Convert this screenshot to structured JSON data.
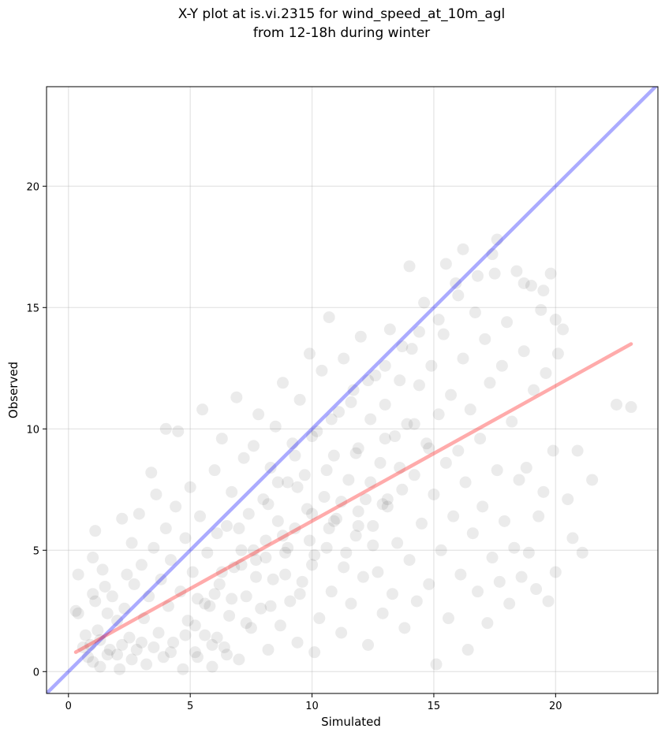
{
  "figure": {
    "title_line1": "X-Y plot at is.vi.2315 for wind_speed_at_10m_agl",
    "title_line2": "from 12-18h during winter"
  },
  "chart_data": {
    "type": "scatter",
    "title": "X-Y plot at is.vi.2315 for wind_speed_at_10m_agl\nfrom 12-18h during winter",
    "xlabel": "Simulated",
    "ylabel": "Observed",
    "xlim": [
      -0.9,
      24.2
    ],
    "ylim": [
      -0.9,
      24.1
    ],
    "xticks": [
      0,
      5,
      10,
      15,
      20
    ],
    "yticks": [
      0,
      5,
      10,
      15,
      20
    ],
    "grid": true,
    "colors": {
      "points": "#000000",
      "one_to_one": "#0000ff",
      "regression": "#ff0000"
    },
    "points_alpha": 0.08,
    "series": [
      {
        "kind": "points",
        "points": [
          [
            0.3,
            2.5
          ],
          [
            0.4,
            4.0
          ],
          [
            0.4,
            2.4
          ],
          [
            0.6,
            1.0
          ],
          [
            0.7,
            1.5
          ],
          [
            0.8,
            0.6
          ],
          [
            0.9,
            1.1
          ],
          [
            1.0,
            4.7
          ],
          [
            1.0,
            3.2
          ],
          [
            1.0,
            0.4
          ],
          [
            1.1,
            5.8
          ],
          [
            1.1,
            2.9
          ],
          [
            1.2,
            1.7
          ],
          [
            1.3,
            1.3
          ],
          [
            1.3,
            0.2
          ],
          [
            1.4,
            4.2
          ],
          [
            1.5,
            3.5
          ],
          [
            1.6,
            2.4
          ],
          [
            1.7,
            0.9
          ],
          [
            1.8,
            3.1
          ],
          [
            2.0,
            2.1
          ],
          [
            2.0,
            0.7
          ],
          [
            2.1,
            0.1
          ],
          [
            2.2,
            6.3
          ],
          [
            2.3,
            2.6
          ],
          [
            2.4,
            4.0
          ],
          [
            2.5,
            1.4
          ],
          [
            2.6,
            5.3
          ],
          [
            2.7,
            3.6
          ],
          [
            2.8,
            0.9
          ],
          [
            2.9,
            6.5
          ],
          [
            3.0,
            4.4
          ],
          [
            3.1,
            2.2
          ],
          [
            3.2,
            0.3
          ],
          [
            3.3,
            3.1
          ],
          [
            3.4,
            8.2
          ],
          [
            3.5,
            5.1
          ],
          [
            3.6,
            7.3
          ],
          [
            3.7,
            1.6
          ],
          [
            3.8,
            3.8
          ],
          [
            3.9,
            0.6
          ],
          [
            4.0,
            5.9
          ],
          [
            4.0,
            10.0
          ],
          [
            4.1,
            2.7
          ],
          [
            4.2,
            4.6
          ],
          [
            4.3,
            1.2
          ],
          [
            4.4,
            6.8
          ],
          [
            4.5,
            9.9
          ],
          [
            4.6,
            3.3
          ],
          [
            4.7,
            0.1
          ],
          [
            4.8,
            5.5
          ],
          [
            4.9,
            2.1
          ],
          [
            5.0,
            7.6
          ],
          [
            5.1,
            4.1
          ],
          [
            5.2,
            0.8
          ],
          [
            5.3,
            3.0
          ],
          [
            5.4,
            6.4
          ],
          [
            5.5,
            10.8
          ],
          [
            5.6,
            1.5
          ],
          [
            5.7,
            4.9
          ],
          [
            5.8,
            2.7
          ],
          [
            5.9,
            0.2
          ],
          [
            6.0,
            8.3
          ],
          [
            6.1,
            5.7
          ],
          [
            6.2,
            3.6
          ],
          [
            6.3,
            9.6
          ],
          [
            6.4,
            1.0
          ],
          [
            6.5,
            6.0
          ],
          [
            6.6,
            2.3
          ],
          [
            6.7,
            7.4
          ],
          [
            6.8,
            4.3
          ],
          [
            6.9,
            11.3
          ],
          [
            7.0,
            0.5
          ],
          [
            7.1,
            5.0
          ],
          [
            7.2,
            8.8
          ],
          [
            7.3,
            3.1
          ],
          [
            7.4,
            6.5
          ],
          [
            7.5,
            1.8
          ],
          [
            7.6,
            9.3
          ],
          [
            7.7,
            4.6
          ],
          [
            7.8,
            10.6
          ],
          [
            7.9,
            2.6
          ],
          [
            8.0,
            7.1
          ],
          [
            8.1,
            5.4
          ],
          [
            8.2,
            0.9
          ],
          [
            8.3,
            8.4
          ],
          [
            8.4,
            3.8
          ],
          [
            8.5,
            10.1
          ],
          [
            8.6,
            6.2
          ],
          [
            8.7,
            1.9
          ],
          [
            8.8,
            11.9
          ],
          [
            8.9,
            4.9
          ],
          [
            9.0,
            7.8
          ],
          [
            9.1,
            2.9
          ],
          [
            9.2,
            9.4
          ],
          [
            9.3,
            5.9
          ],
          [
            9.4,
            1.2
          ],
          [
            9.5,
            11.2
          ],
          [
            9.6,
            3.7
          ],
          [
            9.7,
            8.1
          ],
          [
            9.8,
            6.7
          ],
          [
            9.9,
            13.1
          ],
          [
            10.0,
            4.4
          ],
          [
            10.1,
            0.8
          ],
          [
            10.2,
            9.9
          ],
          [
            10.3,
            2.2
          ],
          [
            10.4,
            12.4
          ],
          [
            10.5,
            7.2
          ],
          [
            10.6,
            5.1
          ],
          [
            10.7,
            14.6
          ],
          [
            10.8,
            3.3
          ],
          [
            10.9,
            8.9
          ],
          [
            11.0,
            6.3
          ],
          [
            11.1,
            10.7
          ],
          [
            11.2,
            1.6
          ],
          [
            11.3,
            12.9
          ],
          [
            11.4,
            4.9
          ],
          [
            11.5,
            7.9
          ],
          [
            11.6,
            2.8
          ],
          [
            11.7,
            11.6
          ],
          [
            11.8,
            5.6
          ],
          [
            11.9,
            9.2
          ],
          [
            12.0,
            13.8
          ],
          [
            12.1,
            3.9
          ],
          [
            12.2,
            7.1
          ],
          [
            12.3,
            1.1
          ],
          [
            12.4,
            10.4
          ],
          [
            12.5,
            6.0
          ],
          [
            12.6,
            12.2
          ],
          [
            12.7,
            4.1
          ],
          [
            12.8,
            8.6
          ],
          [
            12.9,
            2.4
          ],
          [
            13.0,
            11.0
          ],
          [
            13.1,
            6.8
          ],
          [
            13.2,
            14.1
          ],
          [
            13.3,
            3.2
          ],
          [
            13.4,
            9.7
          ],
          [
            13.5,
            5.3
          ],
          [
            13.6,
            12.0
          ],
          [
            13.7,
            7.5
          ],
          [
            13.8,
            1.8
          ],
          [
            13.9,
            10.2
          ],
          [
            14.0,
            4.6
          ],
          [
            14.1,
            13.3
          ],
          [
            14.2,
            8.1
          ],
          [
            14.3,
            2.9
          ],
          [
            14.4,
            11.8
          ],
          [
            14.5,
            6.1
          ],
          [
            14.6,
            15.2
          ],
          [
            14.7,
            9.4
          ],
          [
            14.8,
            3.6
          ],
          [
            14.9,
            12.6
          ],
          [
            15.0,
            7.3
          ],
          [
            15.1,
            0.3
          ],
          [
            15.2,
            10.6
          ],
          [
            15.3,
            5.0
          ],
          [
            15.4,
            13.9
          ],
          [
            15.5,
            8.6
          ],
          [
            15.6,
            2.2
          ],
          [
            15.7,
            11.4
          ],
          [
            15.8,
            6.4
          ],
          [
            15.9,
            16.0
          ],
          [
            16.0,
            9.1
          ],
          [
            16.1,
            4.0
          ],
          [
            16.2,
            12.9
          ],
          [
            16.3,
            7.8
          ],
          [
            16.4,
            0.9
          ],
          [
            16.5,
            10.8
          ],
          [
            16.6,
            5.7
          ],
          [
            16.7,
            14.8
          ],
          [
            16.8,
            3.3
          ],
          [
            16.9,
            9.6
          ],
          [
            17.0,
            6.8
          ],
          [
            17.1,
            13.7
          ],
          [
            17.2,
            2.0
          ],
          [
            17.3,
            11.9
          ],
          [
            17.4,
            4.7
          ],
          [
            17.5,
            16.4
          ],
          [
            17.6,
            8.3
          ],
          [
            17.7,
            3.7
          ],
          [
            17.8,
            12.6
          ],
          [
            17.9,
            6.2
          ],
          [
            18.0,
            14.4
          ],
          [
            18.1,
            2.8
          ],
          [
            18.2,
            10.3
          ],
          [
            18.3,
            5.1
          ],
          [
            18.4,
            16.5
          ],
          [
            18.5,
            7.9
          ],
          [
            18.6,
            3.9
          ],
          [
            18.7,
            13.2
          ],
          [
            18.8,
            8.4
          ],
          [
            18.9,
            4.9
          ],
          [
            19.0,
            15.9
          ],
          [
            19.1,
            11.6
          ],
          [
            19.2,
            3.4
          ],
          [
            19.3,
            6.4
          ],
          [
            19.4,
            14.9
          ],
          [
            19.5,
            7.4
          ],
          [
            19.6,
            12.3
          ],
          [
            19.7,
            2.9
          ],
          [
            19.8,
            16.4
          ],
          [
            19.9,
            9.1
          ],
          [
            20.0,
            4.1
          ],
          [
            20.1,
            13.1
          ],
          [
            20.3,
            14.1
          ],
          [
            20.5,
            7.1
          ],
          [
            20.7,
            5.5
          ],
          [
            20.9,
            9.1
          ],
          [
            21.1,
            4.9
          ],
          [
            21.5,
            7.9
          ],
          [
            22.5,
            11.0
          ],
          [
            23.1,
            10.9
          ],
          [
            5.2,
            1.9
          ],
          [
            5.6,
            2.8
          ],
          [
            6.1,
            1.4
          ],
          [
            6.7,
            3.0
          ],
          [
            7.3,
            2.0
          ],
          [
            7.7,
            3.9
          ],
          [
            8.3,
            2.7
          ],
          [
            8.9,
            4.0
          ],
          [
            9.5,
            3.2
          ],
          [
            10.1,
            4.8
          ],
          [
            10.7,
            5.9
          ],
          [
            11.3,
            4.3
          ],
          [
            11.9,
            6.6
          ],
          [
            12.5,
            5.2
          ],
          [
            13.1,
            7.1
          ],
          [
            6.3,
            4.1
          ],
          [
            7.0,
            5.9
          ],
          [
            7.6,
            5.0
          ],
          [
            8.2,
            6.9
          ],
          [
            8.8,
            5.6
          ],
          [
            9.4,
            7.6
          ],
          [
            10.0,
            6.5
          ],
          [
            10.6,
            8.3
          ],
          [
            11.2,
            7.0
          ],
          [
            11.8,
            9.0
          ],
          [
            12.4,
            7.8
          ],
          [
            13.0,
            9.6
          ],
          [
            13.6,
            8.4
          ],
          [
            14.2,
            10.2
          ],
          [
            14.8,
            9.2
          ],
          [
            6.0,
            3.2
          ],
          [
            7.1,
            4.4
          ],
          [
            8.1,
            4.7
          ],
          [
            9.0,
            5.1
          ],
          [
            9.9,
            5.4
          ],
          [
            10.9,
            6.2
          ],
          [
            11.9,
            6.0
          ],
          [
            12.9,
            6.9
          ],
          [
            3.5,
            1.0
          ],
          [
            4.2,
            0.8
          ],
          [
            4.8,
            1.5
          ],
          [
            5.3,
            0.6
          ],
          [
            5.9,
            1.1
          ],
          [
            6.5,
            0.7
          ],
          [
            2.6,
            0.5
          ],
          [
            3.0,
            1.2
          ],
          [
            1.6,
            0.7
          ],
          [
            2.2,
            1.1
          ],
          [
            8.6,
            7.8
          ],
          [
            9.3,
            8.9
          ],
          [
            10.0,
            9.7
          ],
          [
            10.8,
            10.4
          ],
          [
            11.6,
            11.1
          ],
          [
            12.3,
            12.0
          ],
          [
            13.0,
            12.6
          ],
          [
            13.7,
            13.4
          ],
          [
            14.4,
            14.0
          ],
          [
            15.2,
            14.5
          ],
          [
            16.0,
            15.5
          ],
          [
            16.8,
            16.3
          ],
          [
            17.4,
            17.2
          ],
          [
            17.6,
            17.8
          ],
          [
            18.7,
            16.0
          ],
          [
            19.5,
            15.7
          ],
          [
            20.0,
            14.5
          ],
          [
            15.5,
            16.8
          ],
          [
            16.2,
            17.4
          ],
          [
            14.0,
            16.7
          ]
        ]
      },
      {
        "kind": "line",
        "name": "",
        "x": [
          -0.9,
          24.2
        ],
        "y": [
          -0.9,
          24.2
        ]
      },
      {
        "kind": "line",
        "name": "",
        "x": [
          0.3,
          23.1
        ],
        "y": [
          0.8,
          13.5
        ]
      }
    ]
  }
}
